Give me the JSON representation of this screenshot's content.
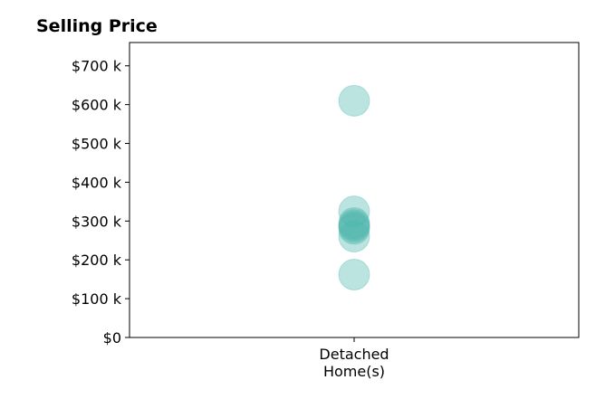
{
  "chart_data": {
    "type": "scatter",
    "title": "Selling Price",
    "categories": [
      "Detached\nHome(s)"
    ],
    "ylim": [
      0,
      760
    ],
    "yticks": [
      0,
      100,
      200,
      300,
      400,
      500,
      600,
      700
    ],
    "yticklabels": [
      "$0",
      "$100 k",
      "$200 k",
      "$300 k",
      "$400 k",
      "$500 k",
      "$600 k",
      "$700 k"
    ],
    "series": [
      {
        "category_index": 0,
        "values": [
          610,
          325,
          295,
          290,
          285,
          280,
          260,
          162
        ]
      }
    ],
    "marker_color": "#4db6ac",
    "marker_opacity": 0.38,
    "grid": false
  }
}
